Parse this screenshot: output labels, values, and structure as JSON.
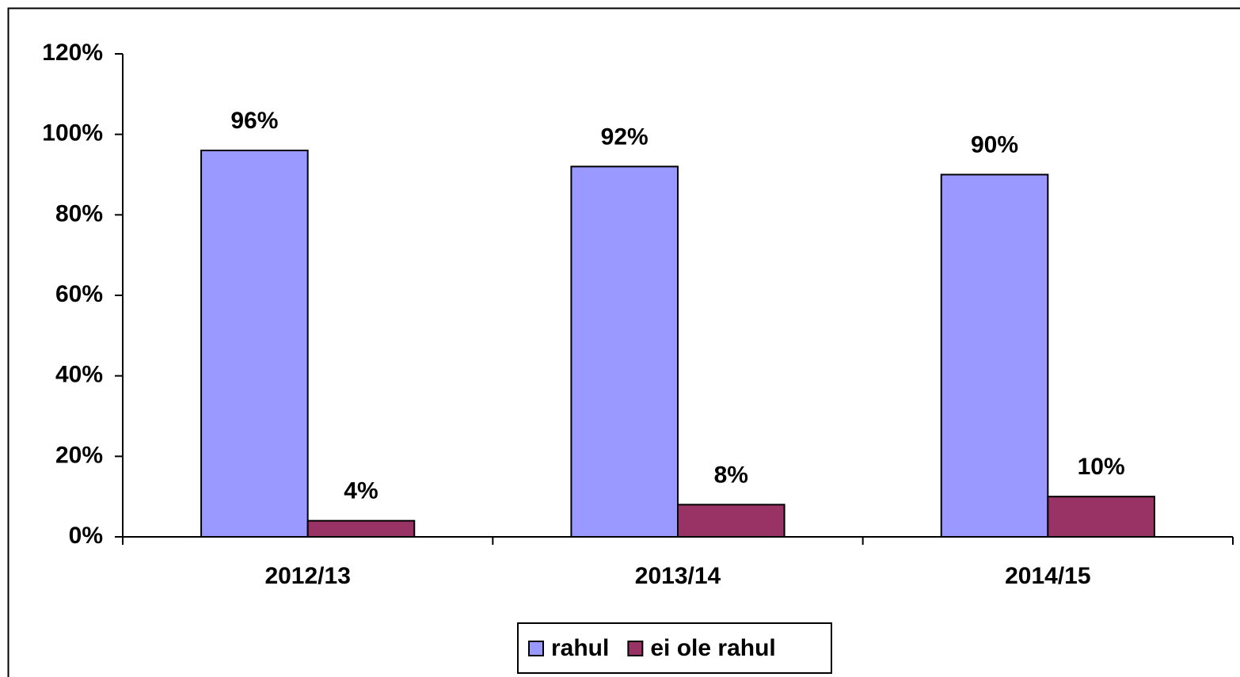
{
  "chart_data": {
    "type": "bar",
    "categories": [
      "2012/13",
      "2013/14",
      "2014/15"
    ],
    "series": [
      {
        "name": "rahul",
        "color": "#9999ff",
        "values": [
          96,
          92,
          90
        ],
        "value_labels": [
          "96%",
          "92%",
          "90%"
        ]
      },
      {
        "name": "ei ole rahul",
        "color": "#993366",
        "values": [
          4,
          8,
          10
        ],
        "value_labels": [
          "4%",
          "8%",
          "10%"
        ]
      }
    ],
    "ylim": [
      0,
      120
    ],
    "yticks": [
      {
        "value": 0,
        "label": "0%"
      },
      {
        "value": 20,
        "label": "20%"
      },
      {
        "value": 40,
        "label": "40%"
      },
      {
        "value": 60,
        "label": "60%"
      },
      {
        "value": 80,
        "label": "80%"
      },
      {
        "value": 100,
        "label": "100%"
      },
      {
        "value": 120,
        "label": "120%"
      }
    ],
    "grid": false,
    "legend": "bottom"
  }
}
